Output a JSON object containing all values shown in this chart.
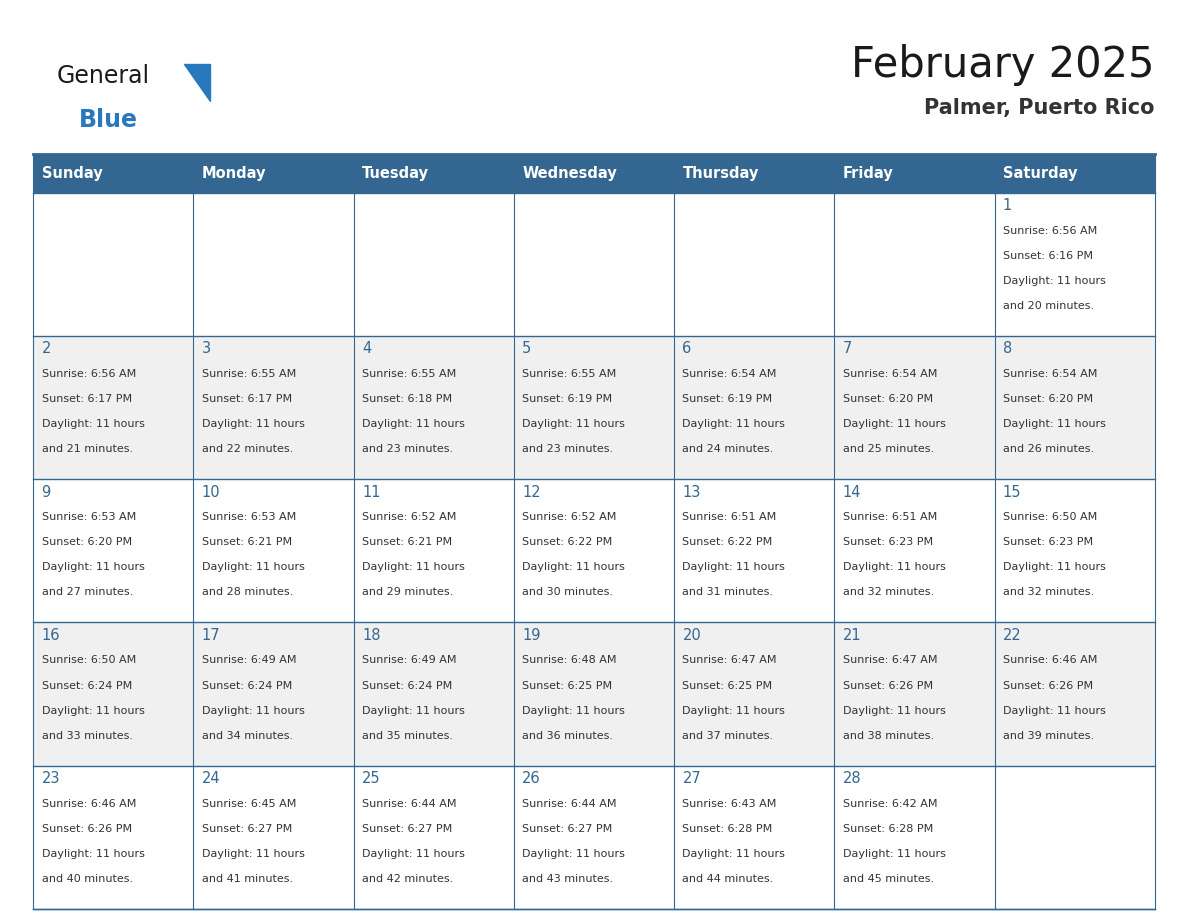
{
  "title": "February 2025",
  "subtitle": "Palmer, Puerto Rico",
  "header_bg": "#336791",
  "header_text_color": "#FFFFFF",
  "cell_bg_even": "#FFFFFF",
  "cell_bg_odd": "#F0F0F0",
  "border_color": "#336791",
  "day_headers": [
    "Sunday",
    "Monday",
    "Tuesday",
    "Wednesday",
    "Thursday",
    "Friday",
    "Saturday"
  ],
  "title_color": "#1a1a1a",
  "subtitle_color": "#333333",
  "day_number_color": "#336791",
  "cell_text_color": "#333333",
  "logo_text_color": "#1a1a1a",
  "logo_blue_color": "#2878BE",
  "calendar": [
    [
      null,
      null,
      null,
      null,
      null,
      null,
      {
        "day": "1",
        "sunrise": "6:56 AM",
        "sunset": "6:16 PM",
        "daylight_line1": "Daylight: 11 hours",
        "daylight_line2": "and 20 minutes."
      }
    ],
    [
      {
        "day": "2",
        "sunrise": "6:56 AM",
        "sunset": "6:17 PM",
        "daylight_line1": "Daylight: 11 hours",
        "daylight_line2": "and 21 minutes."
      },
      {
        "day": "3",
        "sunrise": "6:55 AM",
        "sunset": "6:17 PM",
        "daylight_line1": "Daylight: 11 hours",
        "daylight_line2": "and 22 minutes."
      },
      {
        "day": "4",
        "sunrise": "6:55 AM",
        "sunset": "6:18 PM",
        "daylight_line1": "Daylight: 11 hours",
        "daylight_line2": "and 23 minutes."
      },
      {
        "day": "5",
        "sunrise": "6:55 AM",
        "sunset": "6:19 PM",
        "daylight_line1": "Daylight: 11 hours",
        "daylight_line2": "and 23 minutes."
      },
      {
        "day": "6",
        "sunrise": "6:54 AM",
        "sunset": "6:19 PM",
        "daylight_line1": "Daylight: 11 hours",
        "daylight_line2": "and 24 minutes."
      },
      {
        "day": "7",
        "sunrise": "6:54 AM",
        "sunset": "6:20 PM",
        "daylight_line1": "Daylight: 11 hours",
        "daylight_line2": "and 25 minutes."
      },
      {
        "day": "8",
        "sunrise": "6:54 AM",
        "sunset": "6:20 PM",
        "daylight_line1": "Daylight: 11 hours",
        "daylight_line2": "and 26 minutes."
      }
    ],
    [
      {
        "day": "9",
        "sunrise": "6:53 AM",
        "sunset": "6:20 PM",
        "daylight_line1": "Daylight: 11 hours",
        "daylight_line2": "and 27 minutes."
      },
      {
        "day": "10",
        "sunrise": "6:53 AM",
        "sunset": "6:21 PM",
        "daylight_line1": "Daylight: 11 hours",
        "daylight_line2": "and 28 minutes."
      },
      {
        "day": "11",
        "sunrise": "6:52 AM",
        "sunset": "6:21 PM",
        "daylight_line1": "Daylight: 11 hours",
        "daylight_line2": "and 29 minutes."
      },
      {
        "day": "12",
        "sunrise": "6:52 AM",
        "sunset": "6:22 PM",
        "daylight_line1": "Daylight: 11 hours",
        "daylight_line2": "and 30 minutes."
      },
      {
        "day": "13",
        "sunrise": "6:51 AM",
        "sunset": "6:22 PM",
        "daylight_line1": "Daylight: 11 hours",
        "daylight_line2": "and 31 minutes."
      },
      {
        "day": "14",
        "sunrise": "6:51 AM",
        "sunset": "6:23 PM",
        "daylight_line1": "Daylight: 11 hours",
        "daylight_line2": "and 32 minutes."
      },
      {
        "day": "15",
        "sunrise": "6:50 AM",
        "sunset": "6:23 PM",
        "daylight_line1": "Daylight: 11 hours",
        "daylight_line2": "and 32 minutes."
      }
    ],
    [
      {
        "day": "16",
        "sunrise": "6:50 AM",
        "sunset": "6:24 PM",
        "daylight_line1": "Daylight: 11 hours",
        "daylight_line2": "and 33 minutes."
      },
      {
        "day": "17",
        "sunrise": "6:49 AM",
        "sunset": "6:24 PM",
        "daylight_line1": "Daylight: 11 hours",
        "daylight_line2": "and 34 minutes."
      },
      {
        "day": "18",
        "sunrise": "6:49 AM",
        "sunset": "6:24 PM",
        "daylight_line1": "Daylight: 11 hours",
        "daylight_line2": "and 35 minutes."
      },
      {
        "day": "19",
        "sunrise": "6:48 AM",
        "sunset": "6:25 PM",
        "daylight_line1": "Daylight: 11 hours",
        "daylight_line2": "and 36 minutes."
      },
      {
        "day": "20",
        "sunrise": "6:47 AM",
        "sunset": "6:25 PM",
        "daylight_line1": "Daylight: 11 hours",
        "daylight_line2": "and 37 minutes."
      },
      {
        "day": "21",
        "sunrise": "6:47 AM",
        "sunset": "6:26 PM",
        "daylight_line1": "Daylight: 11 hours",
        "daylight_line2": "and 38 minutes."
      },
      {
        "day": "22",
        "sunrise": "6:46 AM",
        "sunset": "6:26 PM",
        "daylight_line1": "Daylight: 11 hours",
        "daylight_line2": "and 39 minutes."
      }
    ],
    [
      {
        "day": "23",
        "sunrise": "6:46 AM",
        "sunset": "6:26 PM",
        "daylight_line1": "Daylight: 11 hours",
        "daylight_line2": "and 40 minutes."
      },
      {
        "day": "24",
        "sunrise": "6:45 AM",
        "sunset": "6:27 PM",
        "daylight_line1": "Daylight: 11 hours",
        "daylight_line2": "and 41 minutes."
      },
      {
        "day": "25",
        "sunrise": "6:44 AM",
        "sunset": "6:27 PM",
        "daylight_line1": "Daylight: 11 hours",
        "daylight_line2": "and 42 minutes."
      },
      {
        "day": "26",
        "sunrise": "6:44 AM",
        "sunset": "6:27 PM",
        "daylight_line1": "Daylight: 11 hours",
        "daylight_line2": "and 43 minutes."
      },
      {
        "day": "27",
        "sunrise": "6:43 AM",
        "sunset": "6:28 PM",
        "daylight_line1": "Daylight: 11 hours",
        "daylight_line2": "and 44 minutes."
      },
      {
        "day": "28",
        "sunrise": "6:42 AM",
        "sunset": "6:28 PM",
        "daylight_line1": "Daylight: 11 hours",
        "daylight_line2": "and 45 minutes."
      },
      null
    ]
  ]
}
